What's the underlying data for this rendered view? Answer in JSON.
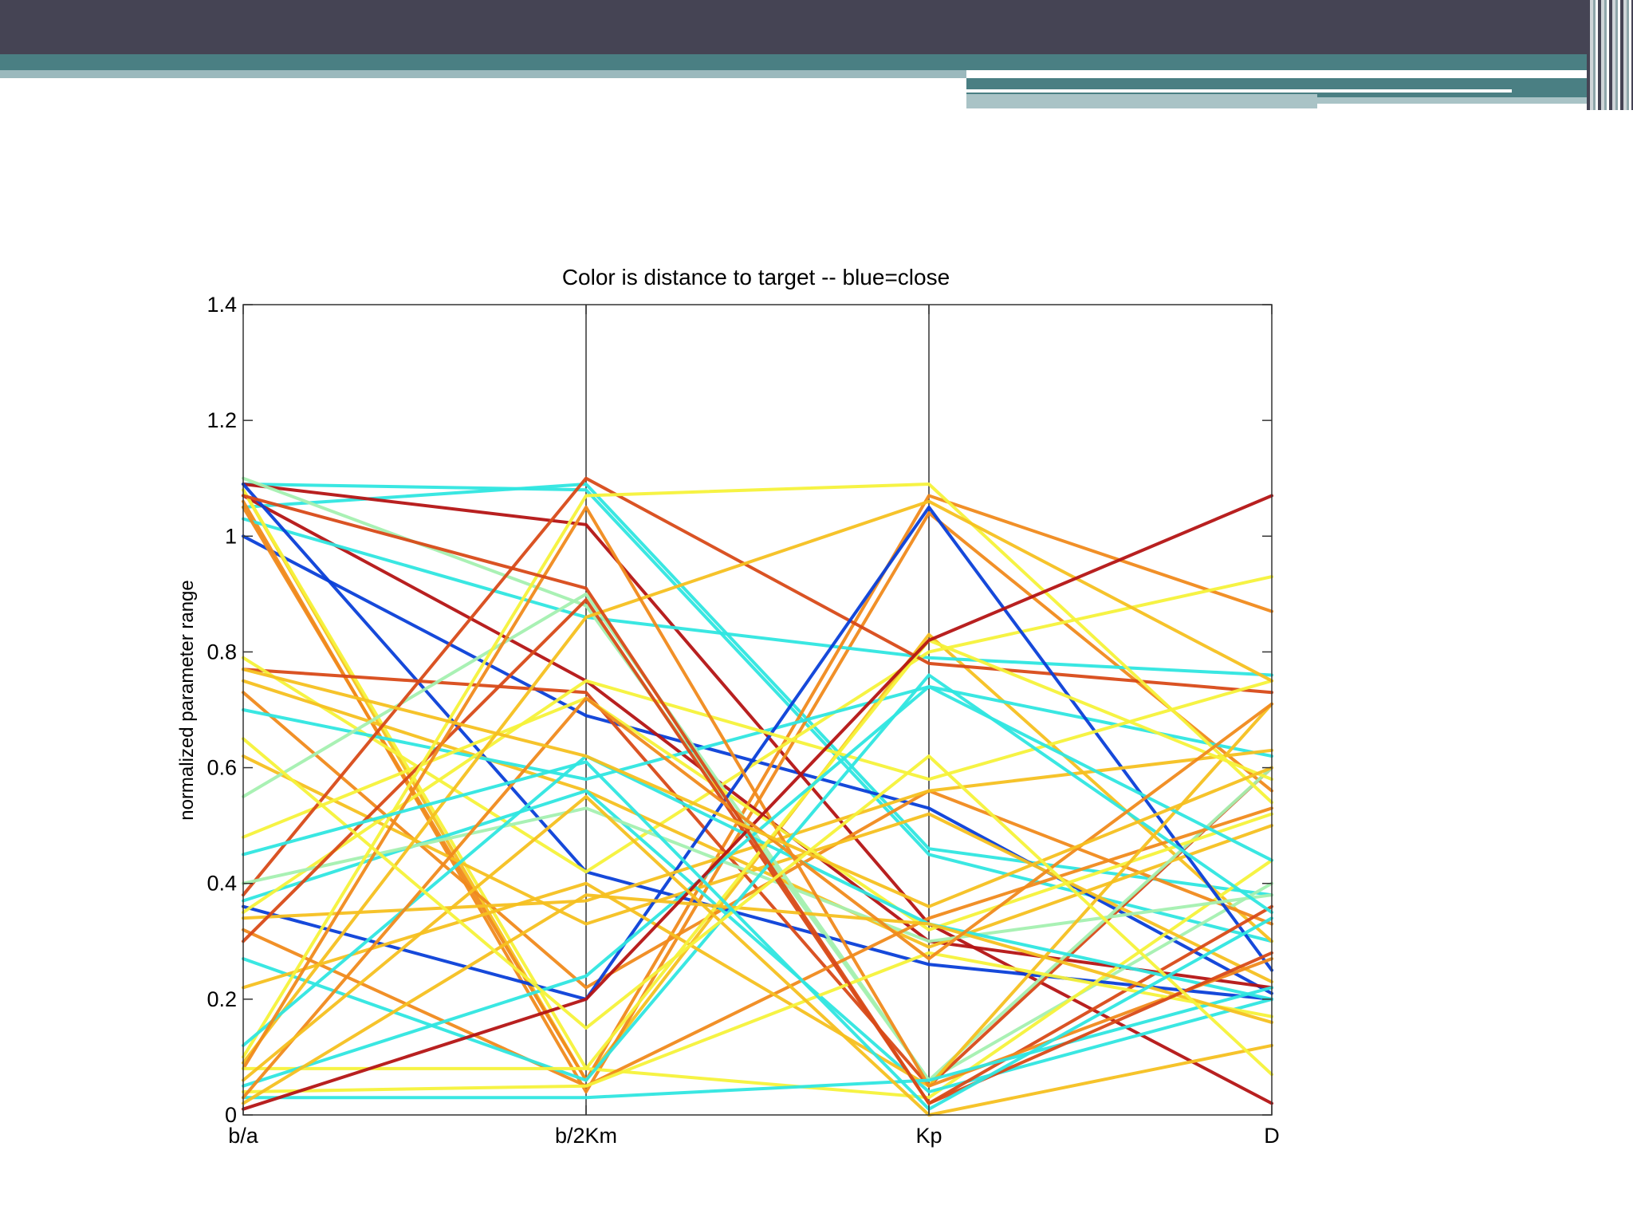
{
  "chart_data": {
    "type": "line",
    "subtype": "parallel-coordinates",
    "title": "Color is distance to target -- blue=close",
    "ylabel": "normalized parameter range",
    "xlabel": "",
    "categories": [
      "b/a",
      "b/2Km",
      "Kp",
      "D"
    ],
    "ylim": [
      0,
      1.4
    ],
    "yticks": [
      "0",
      "0.2",
      "0.4",
      "0.6",
      "0.8",
      "1",
      "1.2",
      "1.4"
    ],
    "grid": false,
    "color_scale": [
      "#0a3fd8",
      "#1aa6f0",
      "#2fe6e0",
      "#a4f0b0",
      "#f5f23a",
      "#f5c020",
      "#f08a1c",
      "#d84a18",
      "#b41414"
    ],
    "lines": [
      {
        "values": [
          1.09,
          1.08,
          0.45,
          0.3
        ],
        "color": "#2fe6e0"
      },
      {
        "values": [
          1.05,
          1.09,
          0.46,
          0.38
        ],
        "color": "#2fe6e0"
      },
      {
        "values": [
          1.0,
          0.69,
          0.53,
          0.21
        ],
        "color": "#0a3fd8"
      },
      {
        "values": [
          1.09,
          1.02,
          0.33,
          0.02
        ],
        "color": "#b41414"
      },
      {
        "values": [
          1.08,
          0.06,
          0.83,
          0.3
        ],
        "color": "#f5c020"
      },
      {
        "values": [
          1.06,
          0.04,
          1.04,
          0.56
        ],
        "color": "#f08a1c"
      },
      {
        "values": [
          1.07,
          0.75,
          0.3,
          0.22
        ],
        "color": "#b41414"
      },
      {
        "values": [
          1.03,
          0.86,
          0.79,
          0.76
        ],
        "color": "#2fe6e0"
      },
      {
        "values": [
          1.1,
          0.88,
          0.06,
          0.4
        ],
        "color": "#a4f0b0"
      },
      {
        "values": [
          1.09,
          0.42,
          0.26,
          0.2
        ],
        "color": "#0a3fd8"
      },
      {
        "values": [
          1.05,
          0.06,
          1.07,
          0.87
        ],
        "color": "#f08a1c"
      },
      {
        "values": [
          1.08,
          0.08,
          0.03,
          0.44
        ],
        "color": "#f5f23a"
      },
      {
        "values": [
          0.77,
          0.73,
          0.05,
          0.6
        ],
        "color": "#d84a18"
      },
      {
        "values": [
          0.73,
          0.22,
          0.56,
          0.33
        ],
        "color": "#f08a1c"
      },
      {
        "values": [
          0.79,
          0.42,
          0.8,
          0.93
        ],
        "color": "#f5f23a"
      },
      {
        "values": [
          0.75,
          0.56,
          0.29,
          0.5
        ],
        "color": "#f5c020"
      },
      {
        "values": [
          0.7,
          0.58,
          0.74,
          0.62
        ],
        "color": "#2fe6e0"
      },
      {
        "values": [
          0.62,
          0.33,
          0.52,
          0.23
        ],
        "color": "#f5c020"
      },
      {
        "values": [
          0.55,
          0.9,
          0.06,
          0.6
        ],
        "color": "#a4f0b0"
      },
      {
        "values": [
          0.48,
          0.72,
          0.32,
          0.52
        ],
        "color": "#f5f23a"
      },
      {
        "values": [
          0.38,
          1.1,
          0.78,
          0.73
        ],
        "color": "#d84a18"
      },
      {
        "values": [
          0.37,
          0.56,
          0.04,
          0.2
        ],
        "color": "#2fe6e0"
      },
      {
        "values": [
          0.36,
          0.2,
          1.05,
          0.25
        ],
        "color": "#0a3fd8"
      },
      {
        "values": [
          0.35,
          0.75,
          0.58,
          0.75
        ],
        "color": "#f5f23a"
      },
      {
        "values": [
          0.4,
          0.53,
          0.3,
          0.38
        ],
        "color": "#a4f0b0"
      },
      {
        "values": [
          0.34,
          0.37,
          0.56,
          0.63
        ],
        "color": "#f5c020"
      },
      {
        "values": [
          0.32,
          0.05,
          0.34,
          0.53
        ],
        "color": "#f08a1c"
      },
      {
        "values": [
          0.3,
          0.89,
          0.02,
          0.36
        ],
        "color": "#d84a18"
      },
      {
        "values": [
          0.27,
          0.06,
          0.76,
          0.35
        ],
        "color": "#2fe6e0"
      },
      {
        "values": [
          0.22,
          0.4,
          0.05,
          0.71
        ],
        "color": "#f5c020"
      },
      {
        "values": [
          0.1,
          1.07,
          1.09,
          0.54
        ],
        "color": "#f5f23a"
      },
      {
        "values": [
          0.09,
          0.86,
          1.06,
          0.75
        ],
        "color": "#f5c020"
      },
      {
        "values": [
          0.12,
          0.62,
          0.33,
          0.2
        ],
        "color": "#2fe6e0"
      },
      {
        "values": [
          0.08,
          1.05,
          0.05,
          0.27
        ],
        "color": "#f08a1c"
      },
      {
        "values": [
          0.08,
          0.08,
          0.82,
          0.58
        ],
        "color": "#f5f23a"
      },
      {
        "values": [
          0.05,
          0.24,
          0.74,
          0.44
        ],
        "color": "#2fe6e0"
      },
      {
        "values": [
          0.04,
          0.05,
          0.28,
          0.17
        ],
        "color": "#f5f23a"
      },
      {
        "values": [
          0.03,
          0.03,
          0.06,
          0.22
        ],
        "color": "#2fe6e0"
      },
      {
        "values": [
          0.02,
          0.38,
          0.33,
          0.16
        ],
        "color": "#f5c020"
      },
      {
        "values": [
          0.01,
          0.2,
          0.82,
          1.07
        ],
        "color": "#b41414"
      },
      {
        "values": [
          0.03,
          0.72,
          0.27,
          0.71
        ],
        "color": "#f08a1c"
      },
      {
        "values": [
          0.06,
          0.55,
          0.0,
          0.12
        ],
        "color": "#f5c020"
      },
      {
        "values": [
          1.07,
          0.91,
          0.02,
          0.28
        ],
        "color": "#d84a18"
      },
      {
        "values": [
          0.77,
          0.62,
          0.36,
          0.6
        ],
        "color": "#f5c020"
      },
      {
        "values": [
          0.65,
          0.15,
          0.62,
          0.07
        ],
        "color": "#f5f23a"
      },
      {
        "values": [
          0.45,
          0.61,
          0.01,
          0.34
        ],
        "color": "#2fe6e0"
      }
    ]
  }
}
